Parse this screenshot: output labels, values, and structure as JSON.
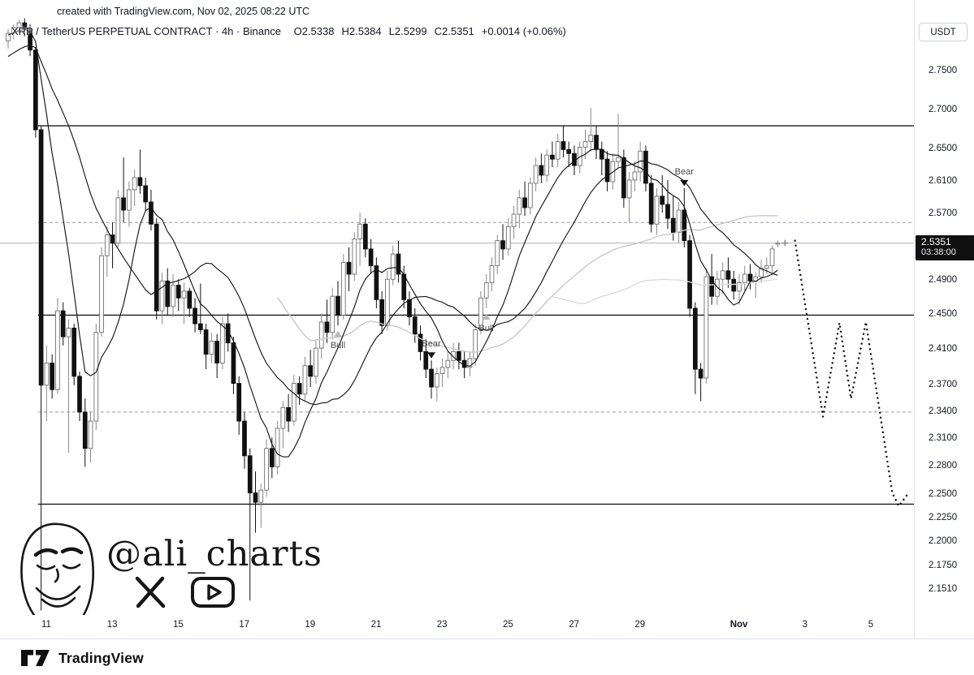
{
  "meta": {
    "created_note": "created with TradingView.com, Nov 02, 2025 08:22 UTC"
  },
  "header": {
    "symbol_title": "XRP / TetherUS PERPETUAL CONTRACT",
    "separator": "·",
    "interval": "4h",
    "exchange": "Binance",
    "ohlc": {
      "open_label": "O",
      "open": "2.5338",
      "high_label": "H",
      "high": "2.5384",
      "low_label": "L",
      "low": "2.5299",
      "close_label": "C",
      "close": "2.5351",
      "change": "+0.0014",
      "change_pct": "(+0.06%)"
    }
  },
  "price_scale": {
    "currency": "USDT",
    "last_price": "2.5351",
    "countdown": "03:38:00"
  },
  "watermark": {
    "handle": "@ali_charts"
  },
  "footer": {
    "brand": "TradingView"
  },
  "chart_data": {
    "type": "candlestick",
    "title": "XRP / TetherUS PERPETUAL CONTRACT · 4h · Binance",
    "interval_hours": 4,
    "scale": "logarithmic",
    "grid": false,
    "colors": {
      "up_body": "#ffffff",
      "up_border": "#6f6f6f",
      "up_wick": "#8a8a8a",
      "down_body": "#111111",
      "down_wick": "#111111",
      "level_solid": "#1c1c1c",
      "level_dashed": "#9598a1",
      "last_price_line": "#b0b3bb",
      "projection": "#111111",
      "ma_fast": "#161616",
      "ma_slow": "#161616",
      "ma_gray1": "#c9c9c9",
      "ma_gray2": "#dcdcdc",
      "badge_bg": "#101010",
      "badge_text": "#ffffff"
    },
    "last": {
      "price": 2.5351,
      "open": 2.5338,
      "high": 2.5384,
      "low": 2.5299,
      "change": 0.0014,
      "change_pct": 0.06,
      "countdown": "03:38:00"
    },
    "price_axis_labels": [
      {
        "text": "2.7500",
        "price": 2.75
      },
      {
        "text": "2.7000",
        "price": 2.7
      },
      {
        "text": "2.6500",
        "price": 2.65
      },
      {
        "text": "2.6100",
        "price": 2.61
      },
      {
        "text": "2.5700",
        "price": 2.57
      },
      {
        "text": "2.4900",
        "price": 2.49
      },
      {
        "text": "2.4500",
        "price": 2.45
      },
      {
        "text": "2.4100",
        "price": 2.41
      },
      {
        "text": "2.3700",
        "price": 2.37
      },
      {
        "text": "2.3400",
        "price": 2.34
      },
      {
        "text": "2.3100",
        "price": 2.31
      },
      {
        "text": "2.2800",
        "price": 2.28
      },
      {
        "text": "2.2500",
        "price": 2.25
      },
      {
        "text": "2.2250",
        "price": 2.225
      },
      {
        "text": "2.2000",
        "price": 2.2
      },
      {
        "text": "2.1750",
        "price": 2.175
      },
      {
        "text": "2.1510",
        "price": 2.151
      }
    ],
    "time_axis_labels": [
      {
        "text": "11",
        "day": 0
      },
      {
        "text": "13",
        "day": 2
      },
      {
        "text": "15",
        "day": 4
      },
      {
        "text": "17",
        "day": 6
      },
      {
        "text": "19",
        "day": 8
      },
      {
        "text": "21",
        "day": 10
      },
      {
        "text": "23",
        "day": 12
      },
      {
        "text": "25",
        "day": 14
      },
      {
        "text": "27",
        "day": 16
      },
      {
        "text": "29",
        "day": 18
      },
      {
        "text": "Nov",
        "day": 21,
        "bold": true
      },
      {
        "text": "3",
        "day": 23
      },
      {
        "text": "5",
        "day": 25
      }
    ],
    "levels": [
      {
        "price": 2.68,
        "style": "solid",
        "start_day": -0.25
      },
      {
        "price": 2.56,
        "style": "dashed",
        "start_day": -0.25
      },
      {
        "price": 2.45,
        "style": "solid",
        "start_day": -0.25
      },
      {
        "price": 2.34,
        "style": "dashed",
        "start_day": -0.25
      },
      {
        "price": 2.24,
        "style": "solid",
        "start_day": -0.25
      }
    ],
    "markers": [
      {
        "type": "bull",
        "index": 60,
        "label": "Bull"
      },
      {
        "type": "bear",
        "index": 77,
        "label": "Bear"
      },
      {
        "type": "bull",
        "index": 87,
        "label": "Bull"
      },
      {
        "type": "bear",
        "index": 123,
        "label": "Bear"
      }
    ],
    "projection": {
      "style": "dotted",
      "points_day_price": [
        [
          22.7,
          2.538
        ],
        [
          23.55,
          2.335
        ],
        [
          24.05,
          2.441
        ],
        [
          24.4,
          2.355
        ],
        [
          24.85,
          2.442
        ],
        [
          25.65,
          2.252
        ],
        [
          25.85,
          2.238
        ],
        [
          26.1,
          2.25
        ]
      ]
    },
    "moving_averages": [
      {
        "period": 50,
        "color_key": "ma_gray1",
        "use_history": false
      },
      {
        "period": 100,
        "color_key": "ma_gray2",
        "use_history": false
      },
      {
        "period": 9,
        "color_key": "ma_fast",
        "use_history": true
      },
      {
        "period": 21,
        "color_key": "ma_slow",
        "use_history": true
      }
    ],
    "ma_virtual_history": [
      2.7,
      2.71,
      2.72,
      2.73,
      2.74,
      2.74,
      2.75,
      2.75,
      2.76,
      2.76,
      2.77,
      2.77,
      2.78,
      2.78,
      2.79,
      2.79,
      2.8,
      2.8,
      2.81,
      2.81,
      2.8
    ],
    "candles": [
      [
        2.79,
        2.806,
        2.78,
        2.8
      ],
      [
        2.8,
        2.812,
        2.792,
        2.808
      ],
      [
        2.808,
        2.818,
        2.8,
        2.814
      ],
      [
        2.814,
        2.82,
        2.796,
        2.806
      ],
      [
        2.806,
        2.812,
        2.77,
        2.778
      ],
      [
        2.778,
        2.782,
        2.665,
        2.675
      ],
      [
        2.675,
        2.68,
        2.13,
        2.37
      ],
      [
        2.37,
        2.415,
        2.33,
        2.395
      ],
      [
        2.395,
        2.405,
        2.355,
        2.365
      ],
      [
        2.365,
        2.47,
        2.36,
        2.455
      ],
      [
        2.455,
        2.465,
        2.415,
        2.425
      ],
      [
        2.425,
        2.445,
        2.295,
        2.435
      ],
      [
        2.435,
        2.44,
        2.37,
        2.38
      ],
      [
        2.38,
        2.385,
        2.33,
        2.34
      ],
      [
        2.34,
        2.355,
        2.28,
        2.3
      ],
      [
        2.3,
        2.34,
        2.285,
        2.33
      ],
      [
        2.33,
        2.44,
        2.32,
        2.43
      ],
      [
        2.43,
        2.53,
        2.425,
        2.52
      ],
      [
        2.52,
        2.555,
        2.495,
        2.545
      ],
      [
        2.545,
        2.56,
        2.505,
        2.535
      ],
      [
        2.535,
        2.6,
        2.53,
        2.59
      ],
      [
        2.59,
        2.64,
        2.56,
        2.575
      ],
      [
        2.575,
        2.61,
        2.555,
        2.6
      ],
      [
        2.6,
        2.625,
        2.58,
        2.615
      ],
      [
        2.615,
        2.65,
        2.595,
        2.605
      ],
      [
        2.605,
        2.615,
        2.575,
        2.585
      ],
      [
        2.585,
        2.6,
        2.55,
        2.558
      ],
      [
        2.558,
        2.565,
        2.445,
        2.455
      ],
      [
        2.455,
        2.5,
        2.44,
        2.49
      ],
      [
        2.49,
        2.505,
        2.45,
        2.46
      ],
      [
        2.46,
        2.498,
        2.448,
        2.485
      ],
      [
        2.485,
        2.492,
        2.455,
        2.47
      ],
      [
        2.47,
        2.488,
        2.44,
        2.478
      ],
      [
        2.478,
        2.482,
        2.448,
        2.458
      ],
      [
        2.458,
        2.47,
        2.43,
        2.44
      ],
      [
        2.44,
        2.487,
        2.428,
        2.433
      ],
      [
        2.433,
        2.44,
        2.388,
        2.405
      ],
      [
        2.405,
        2.43,
        2.395,
        2.42
      ],
      [
        2.42,
        2.428,
        2.378,
        2.395
      ],
      [
        2.395,
        2.448,
        2.388,
        2.44
      ],
      [
        2.44,
        2.452,
        2.408,
        2.418
      ],
      [
        2.418,
        2.425,
        2.36,
        2.372
      ],
      [
        2.372,
        2.38,
        2.315,
        2.33
      ],
      [
        2.33,
        2.34,
        2.278,
        2.292
      ],
      [
        2.292,
        2.3,
        2.14,
        2.252
      ],
      [
        2.252,
        2.275,
        2.21,
        2.242
      ],
      [
        2.242,
        2.262,
        2.215,
        2.255
      ],
      [
        2.255,
        2.31,
        2.248,
        2.3
      ],
      [
        2.3,
        2.312,
        2.268,
        2.28
      ],
      [
        2.28,
        2.33,
        2.272,
        2.322
      ],
      [
        2.322,
        2.352,
        2.3,
        2.345
      ],
      [
        2.345,
        2.36,
        2.318,
        2.33
      ],
      [
        2.33,
        2.382,
        2.325,
        2.372
      ],
      [
        2.372,
        2.38,
        2.348,
        2.36
      ],
      [
        2.36,
        2.402,
        2.352,
        2.392
      ],
      [
        2.392,
        2.41,
        2.368,
        2.38
      ],
      [
        2.38,
        2.422,
        2.372,
        2.412
      ],
      [
        2.412,
        2.452,
        2.4,
        2.442
      ],
      [
        2.442,
        2.468,
        2.418,
        2.43
      ],
      [
        2.43,
        2.482,
        2.422,
        2.472
      ],
      [
        2.472,
        2.49,
        2.438,
        2.45
      ],
      [
        2.45,
        2.522,
        2.445,
        2.512
      ],
      [
        2.512,
        2.53,
        2.478,
        2.498
      ],
      [
        2.498,
        2.548,
        2.49,
        2.54
      ],
      [
        2.54,
        2.572,
        2.508,
        2.558
      ],
      [
        2.558,
        2.565,
        2.518,
        2.528
      ],
      [
        2.528,
        2.54,
        2.498,
        2.508
      ],
      [
        2.508,
        2.518,
        2.458,
        2.468
      ],
      [
        2.468,
        2.478,
        2.428,
        2.438
      ],
      [
        2.438,
        2.502,
        2.432,
        2.492
      ],
      [
        2.492,
        2.532,
        2.485,
        2.522
      ],
      [
        2.522,
        2.538,
        2.488,
        2.498
      ],
      [
        2.498,
        2.508,
        2.458,
        2.468
      ],
      [
        2.468,
        2.478,
        2.438,
        2.448
      ],
      [
        2.448,
        2.458,
        2.418,
        2.428
      ],
      [
        2.428,
        2.438,
        2.398,
        2.408
      ],
      [
        2.408,
        2.422,
        2.378,
        2.388
      ],
      [
        2.388,
        2.398,
        2.355,
        2.368
      ],
      [
        2.368,
        2.39,
        2.352,
        2.383
      ],
      [
        2.383,
        2.4,
        2.368,
        2.39
      ],
      [
        2.39,
        2.408,
        2.378,
        2.398
      ],
      [
        2.398,
        2.418,
        2.388,
        2.408
      ],
      [
        2.408,
        2.418,
        2.388,
        2.398
      ],
      [
        2.398,
        2.408,
        2.378,
        2.39
      ],
      [
        2.39,
        2.408,
        2.38,
        2.4
      ],
      [
        2.4,
        2.44,
        2.392,
        2.433
      ],
      [
        2.433,
        2.478,
        2.428,
        2.47
      ],
      [
        2.47,
        2.498,
        2.458,
        2.488
      ],
      [
        2.488,
        2.518,
        2.478,
        2.508
      ],
      [
        2.508,
        2.545,
        2.498,
        2.538
      ],
      [
        2.538,
        2.558,
        2.515,
        2.528
      ],
      [
        2.528,
        2.565,
        2.52,
        2.555
      ],
      [
        2.555,
        2.58,
        2.54,
        2.57
      ],
      [
        2.57,
        2.6,
        2.553,
        2.59
      ],
      [
        2.59,
        2.61,
        2.568,
        2.578
      ],
      [
        2.578,
        2.615,
        2.57,
        2.608
      ],
      [
        2.608,
        2.64,
        2.598,
        2.63
      ],
      [
        2.63,
        2.645,
        2.608,
        2.618
      ],
      [
        2.618,
        2.65,
        2.61,
        2.643
      ],
      [
        2.643,
        2.66,
        2.628,
        2.638
      ],
      [
        2.638,
        2.67,
        2.628,
        2.66
      ],
      [
        2.66,
        2.68,
        2.64,
        2.65
      ],
      [
        2.65,
        2.66,
        2.628,
        2.645
      ],
      [
        2.645,
        2.655,
        2.618,
        2.63
      ],
      [
        2.63,
        2.66,
        2.62,
        2.653
      ],
      [
        2.653,
        2.675,
        2.638,
        2.66
      ],
      [
        2.66,
        2.703,
        2.648,
        2.668
      ],
      [
        2.668,
        2.68,
        2.638,
        2.65
      ],
      [
        2.65,
        2.66,
        2.618,
        2.638
      ],
      [
        2.638,
        2.648,
        2.598,
        2.61
      ],
      [
        2.61,
        2.645,
        2.6,
        2.635
      ],
      [
        2.635,
        2.695,
        2.628,
        2.64
      ],
      [
        2.64,
        2.65,
        2.578,
        2.59
      ],
      [
        2.59,
        2.622,
        2.56,
        2.612
      ],
      [
        2.612,
        2.635,
        2.598,
        2.622
      ],
      [
        2.622,
        2.66,
        2.61,
        2.648
      ],
      [
        2.648,
        2.655,
        2.598,
        2.608
      ],
      [
        2.608,
        2.618,
        2.548,
        2.558
      ],
      [
        2.558,
        2.602,
        2.545,
        2.592
      ],
      [
        2.592,
        2.618,
        2.572,
        2.582
      ],
      [
        2.582,
        2.612,
        2.552,
        2.565
      ],
      [
        2.565,
        2.592,
        2.538,
        2.548
      ],
      [
        2.548,
        2.585,
        2.535,
        2.575
      ],
      [
        2.575,
        2.602,
        2.53,
        2.538
      ],
      [
        2.538,
        2.545,
        2.448,
        2.458
      ],
      [
        2.458,
        2.465,
        2.36,
        2.388
      ],
      [
        2.388,
        2.395,
        2.352,
        2.378
      ],
      [
        2.378,
        2.505,
        2.372,
        2.495
      ],
      [
        2.495,
        2.522,
        2.462,
        2.472
      ],
      [
        2.472,
        2.502,
        2.462,
        2.492
      ],
      [
        2.492,
        2.512,
        2.475,
        2.502
      ],
      [
        2.502,
        2.518,
        2.482,
        2.492
      ],
      [
        2.492,
        2.502,
        2.468,
        2.478
      ],
      [
        2.478,
        2.498,
        2.462,
        2.488
      ],
      [
        2.488,
        2.508,
        2.478,
        2.498
      ],
      [
        2.498,
        2.51,
        2.48,
        2.49
      ],
      [
        2.49,
        2.5,
        2.47,
        2.495
      ],
      [
        2.495,
        2.515,
        2.488,
        2.505
      ],
      [
        2.505,
        2.518,
        2.498,
        2.508
      ],
      [
        2.508,
        2.532,
        2.5,
        2.528
      ],
      [
        2.5338,
        2.5384,
        2.5299,
        2.5351
      ]
    ]
  }
}
